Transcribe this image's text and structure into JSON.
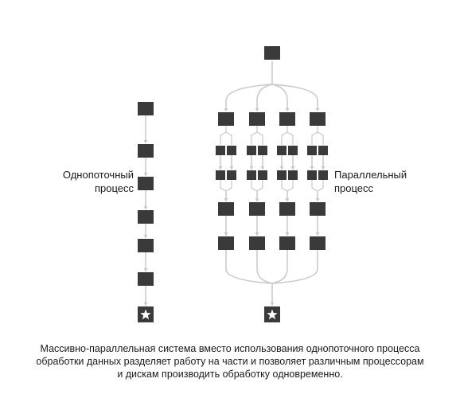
{
  "labels": {
    "single": [
      "Однопоточный",
      "процесс"
    ],
    "parallel": [
      "Параллельный",
      "процесс"
    ]
  },
  "caption": [
    "Массивно-параллельная система вместо использования однопоточного процесса",
    "обработки данных разделяет работу на части и позволяет различным процессорам",
    "и дискам производить обработку одновременно."
  ],
  "colors": {
    "block": "#3a3a3a",
    "line": "#c8c8c8",
    "star_bg": "#3a3a3a",
    "star": "#ffffff"
  }
}
